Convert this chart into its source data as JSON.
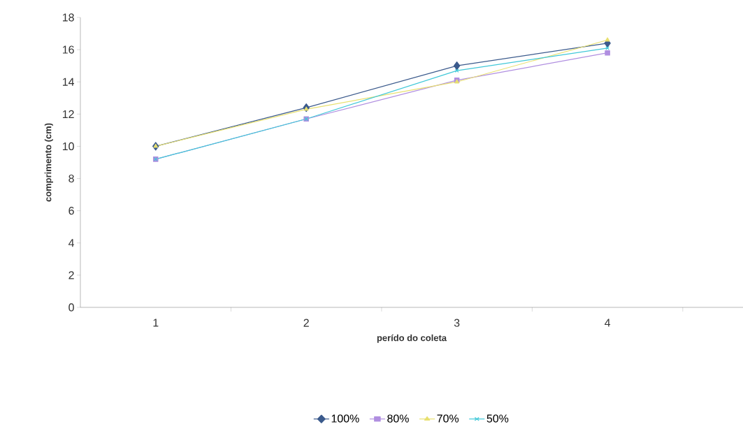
{
  "chart_data": {
    "type": "line",
    "xlabel": "perído do coleta",
    "ylabel": "comprimento (cm)",
    "categories": [
      "1",
      "2",
      "3",
      "4"
    ],
    "ylim": [
      0,
      18
    ],
    "yticks": [
      0,
      2,
      4,
      6,
      8,
      10,
      12,
      14,
      16,
      18
    ],
    "legend": "bottom",
    "line_style": "solid",
    "grid": false,
    "series": [
      {
        "name": "100%",
        "color": "#3b5a8c",
        "values": [
          10.0,
          12.4,
          15.0,
          16.4
        ],
        "marker": "diamond"
      },
      {
        "name": "80%",
        "color": "#b08ee0",
        "values": [
          9.2,
          11.7,
          14.1,
          15.8
        ],
        "marker": "square"
      },
      {
        "name": "70%",
        "color": "#e8e070",
        "values": [
          10.0,
          12.3,
          14.0,
          16.6
        ],
        "marker": "triangle"
      },
      {
        "name": "50%",
        "color": "#40c8d8",
        "values": [
          9.2,
          11.7,
          14.7,
          16.1
        ],
        "marker": "cross"
      }
    ]
  }
}
